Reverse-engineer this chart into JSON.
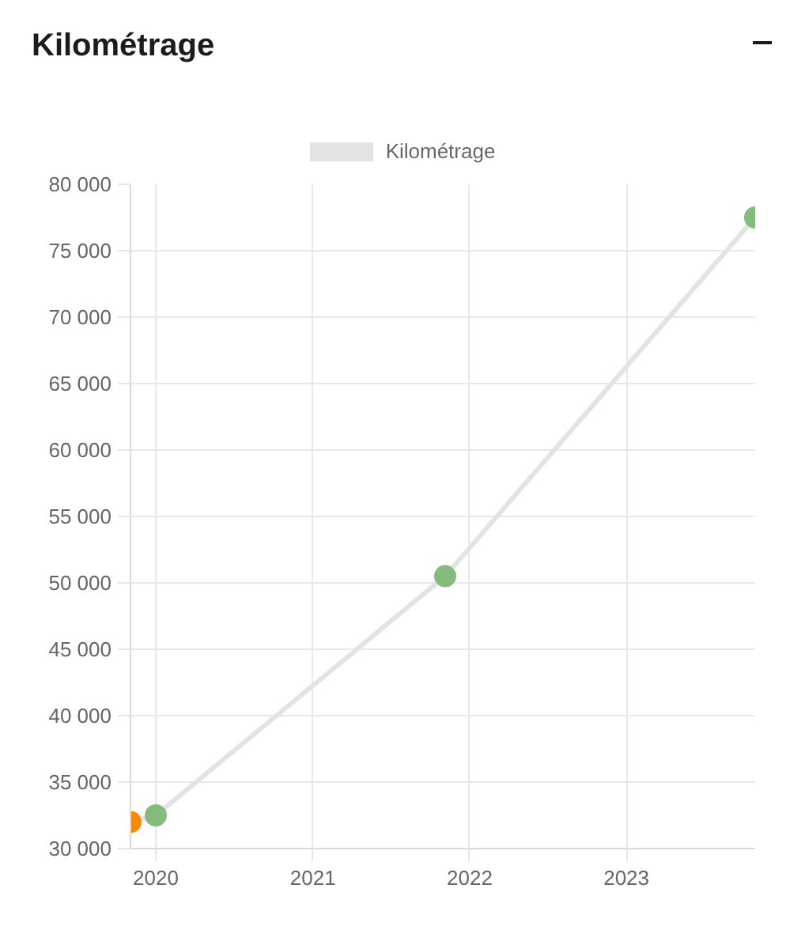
{
  "chart_data": {
    "type": "line",
    "title": "Kilométrage",
    "x": [
      "2019-11-03",
      "2020-01-01",
      "2021-11-05",
      "2023-10-28"
    ],
    "series": [
      {
        "name": "Kilométrage",
        "color": "#e3e3e3",
        "colors": [
          "#f58a07",
          "#86bb7e",
          "#86bb7e",
          "#86bb7e"
        ],
        "values": [
          32000,
          32500,
          50500,
          77500
        ]
      }
    ],
    "xlim": [
      "2019-11-03",
      "2023-10-28"
    ],
    "xticks": [
      "2020",
      "2021",
      "2022",
      "2023"
    ],
    "ylim": [
      30000,
      80000
    ],
    "yticks": [
      {
        "value": 30000,
        "label": "30 000"
      },
      {
        "value": 35000,
        "label": "35 000"
      },
      {
        "value": 40000,
        "label": "40 000"
      },
      {
        "value": 45000,
        "label": "45 000"
      },
      {
        "value": 50000,
        "label": "50 000"
      },
      {
        "value": 55000,
        "label": "55 000"
      },
      {
        "value": 60000,
        "label": "60 000"
      },
      {
        "value": 65000,
        "label": "65 000"
      },
      {
        "value": 70000,
        "label": "70 000"
      },
      {
        "value": 75000,
        "label": "75 000"
      },
      {
        "value": 80000,
        "label": "80 000"
      }
    ],
    "grid": true,
    "legend": "top",
    "marker": "circle",
    "line_style": "solid"
  }
}
